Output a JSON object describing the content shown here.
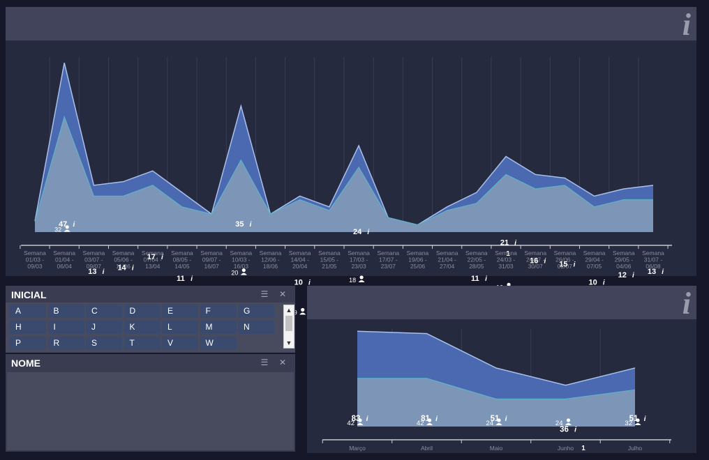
{
  "top_panel": {
    "info_icon": "i",
    "page_marker": "1"
  },
  "bottom_panel": {
    "info_icon": "i",
    "page_marker": "1"
  },
  "filters": {
    "inicial": {
      "title": "INICIAL",
      "letters": [
        "A",
        "B",
        "C",
        "D",
        "E",
        "F",
        "G",
        "H",
        "I",
        "J",
        "K",
        "L",
        "M",
        "N",
        "P",
        "R",
        "S",
        "T",
        "V",
        "W"
      ]
    },
    "nome": {
      "title": "NOME"
    }
  },
  "colors": {
    "background": "#161829",
    "panel": "#262a3f",
    "header": "#41445a",
    "outer_area": "#4a69b0",
    "inner_area": "#7d96b8",
    "outer_line": "#a8c0ea",
    "inner_line": "#5fb2c6",
    "letter_button": "#3a4a6e"
  },
  "chart_data": [
    {
      "type": "area",
      "x": [
        [
          "Semana",
          "01/03 -",
          "09/03"
        ],
        [
          "Semana",
          "01/04 -",
          "06/04"
        ],
        [
          "Semana",
          "03/07 -",
          "09/07"
        ],
        [
          "Semana",
          "05/06 -",
          "11/06"
        ],
        [
          "Semana",
          "07/04 -",
          "13/04"
        ],
        [
          "Semana",
          "08/05 -",
          "14/05"
        ],
        [
          "Semana",
          "09/07 -",
          "16/07"
        ],
        [
          "Semana",
          "10/03 -",
          "16/03"
        ],
        [
          "Semana",
          "12/06 -",
          "18/06"
        ],
        [
          "Semana",
          "14/04 -",
          "20/04"
        ],
        [
          "Semana",
          "15/05 -",
          "21/05"
        ],
        [
          "Semana",
          "17/03 -",
          "23/03"
        ],
        [
          "Semana",
          "17/07 -",
          "23/07"
        ],
        [
          "Semana",
          "19/06 -",
          "25/06"
        ],
        [
          "Semana",
          "21/04 -",
          "27/04"
        ],
        [
          "Semana",
          "22/05 -",
          "28/05"
        ],
        [
          "Semana",
          "24/03 -",
          "31/03"
        ],
        [
          "Semana",
          "24/07 -",
          "30/07"
        ],
        [
          "Semana",
          "26/06 -",
          "02/07"
        ],
        [
          "Semana",
          "29/04 -",
          "07/05"
        ],
        [
          "Semana",
          "29/05 -",
          "04/06"
        ],
        [
          "Semana",
          "31/07 -",
          "06/08"
        ]
      ],
      "series": [
        {
          "values": [
            3,
            47,
            13,
            14,
            17,
            11,
            5,
            35,
            5,
            10,
            7,
            24,
            4,
            2,
            7,
            11,
            21,
            16,
            15,
            10,
            12,
            13
          ]
        },
        {
          "values": [
            3,
            32,
            10,
            10,
            13,
            7,
            5,
            20,
            5,
            9,
            6,
            18,
            4,
            2,
            6,
            8,
            16,
            12,
            13,
            7,
            9,
            9
          ]
        }
      ],
      "ylim": [
        0,
        48
      ],
      "grid": true
    },
    {
      "type": "area",
      "x": [
        "Março",
        "Abril",
        "Maio",
        "Junho",
        "Julho"
      ],
      "series": [
        {
          "values": [
            83,
            81,
            51,
            36,
            51
          ]
        },
        {
          "values": [
            42,
            42,
            24,
            24,
            32
          ]
        }
      ],
      "ylim": [
        0,
        85
      ],
      "grid": true
    }
  ]
}
